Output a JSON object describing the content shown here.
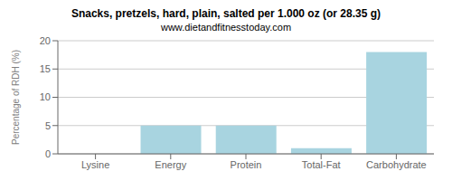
{
  "chart_data": {
    "type": "bar",
    "title": "Snacks, pretzels, hard, plain, salted per 1.000 oz (or 28.35 g)",
    "subtitle": "www.dietandfitnesstoday.com",
    "categories": [
      "Lysine",
      "Energy",
      "Protein",
      "Total-Fat",
      "Carbohydrate"
    ],
    "values": [
      0.0,
      5.0,
      5.0,
      1.0,
      18.0
    ],
    "color": "#a8d4e0",
    "ylabel": "Percentage of RDH (%)",
    "ylim": [
      0,
      20
    ],
    "yticks": [
      0,
      5,
      10,
      15,
      20
    ],
    "grid": true
  }
}
